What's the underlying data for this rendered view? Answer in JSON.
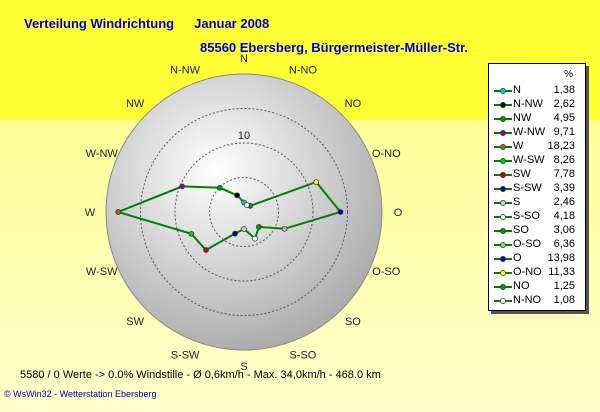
{
  "header": {
    "title": "Verteilung Windrichtung",
    "period": "Januar 2008",
    "station": "85560 Ebersberg, Bürgermeister-Müller-Str."
  },
  "chart_data": {
    "type": "radar",
    "unit": "%",
    "rlim": [
      0,
      20
    ],
    "ring_label": "10",
    "line_color": "#008000",
    "directions": [
      "N",
      "N-NW",
      "NW",
      "W-NW",
      "W",
      "W-SW",
      "SW",
      "S-SW",
      "S",
      "S-SO",
      "SO",
      "O-SO",
      "O",
      "O-NO",
      "NO",
      "N-NO"
    ],
    "values": [
      1.38,
      2.62,
      4.95,
      9.71,
      18.23,
      8.26,
      7.78,
      3.39,
      2.46,
      4.18,
      3.06,
      6.36,
      13.98,
      11.33,
      1.25,
      1.08
    ],
    "marker_colors": [
      "#00cccc",
      "#000000",
      "#009900",
      "#990099",
      "#996633",
      "#00cc00",
      "#cc0000",
      "#000099",
      "#cccccc",
      "#ffffff",
      "#009900",
      "#99cc99",
      "#0000cc",
      "#ffff00",
      "#009900",
      "#ffffff"
    ]
  },
  "footer": {
    "stats": "5580 / 0 Werte   -> 0.0% Windstille    -    Ø 0,6km/h   -   Max. 34,0km/h   -   468.0 km",
    "credit": "© WsWin32  -  Wetterstation Ebersberg"
  }
}
